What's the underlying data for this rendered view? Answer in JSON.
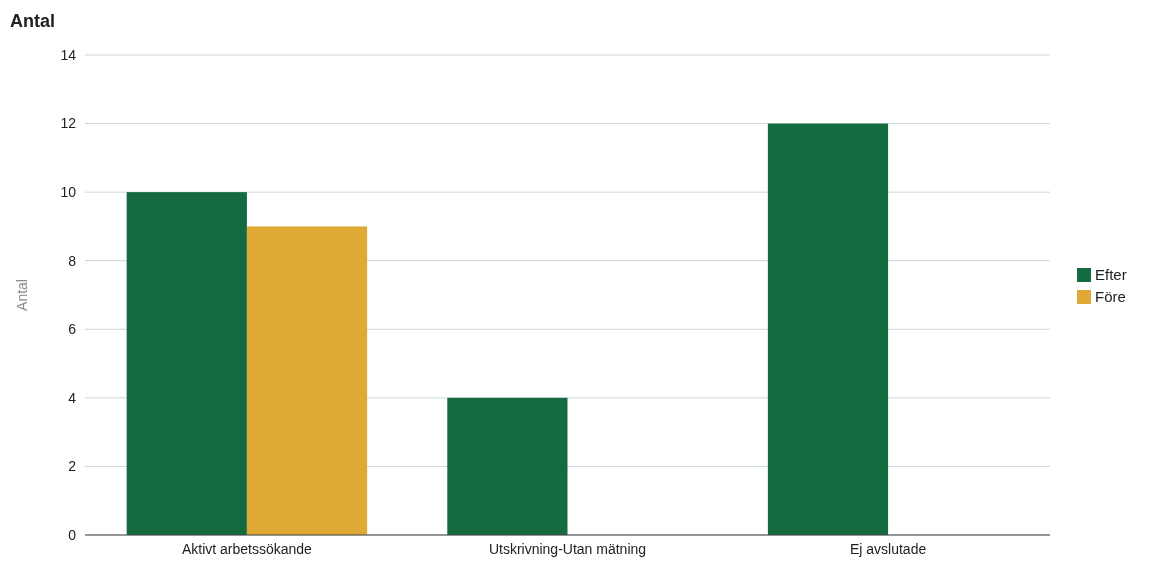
{
  "chart_data": {
    "type": "bar",
    "title": "Antal",
    "ylabel": "Antal",
    "categories": [
      "Aktivt arbetssökande",
      "Utskrivning-Utan mätning",
      "Ej avslutade"
    ],
    "series": [
      {
        "name": "Efter",
        "color": "#146b3f",
        "values": [
          10,
          4,
          12
        ]
      },
      {
        "name": "Före",
        "color": "#e0a936",
        "values": [
          9,
          null,
          null
        ]
      }
    ],
    "ylim": [
      0,
      14
    ],
    "yticks": [
      0,
      2,
      4,
      6,
      8,
      10,
      12,
      14
    ],
    "grid": "y",
    "legend": "right"
  }
}
